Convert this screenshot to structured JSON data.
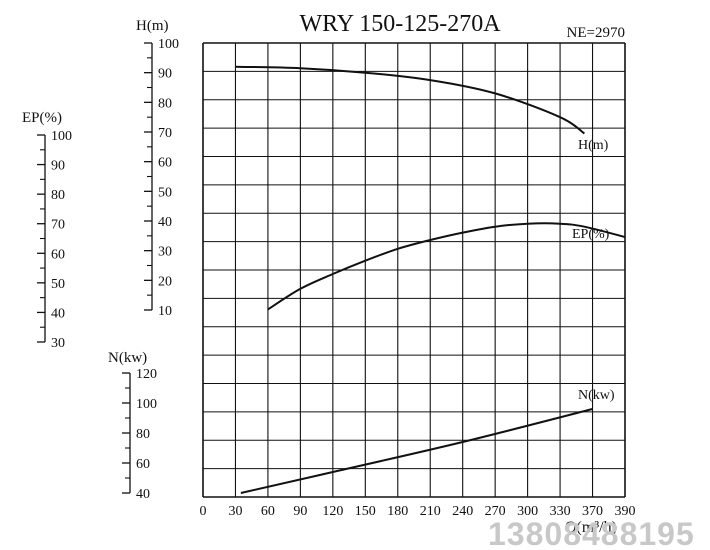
{
  "chart_data": {
    "type": "line",
    "title": "WRY 150-125-270A",
    "subtitle": "NE=2970",
    "xlabel": "Q(m³/h)",
    "x_ticks": [
      "0",
      "30",
      "60",
      "90",
      "120",
      "150",
      "180",
      "210",
      "240",
      "270",
      "300",
      "330",
      "370",
      "390"
    ],
    "xlim": [
      0,
      390
    ],
    "grid": true,
    "axes": [
      {
        "id": "H",
        "label": "H(m)",
        "range": [
          10,
          100
        ],
        "ticks": [
          "100",
          "90",
          "80",
          "70",
          "60",
          "50",
          "40",
          "30",
          "20",
          "10"
        ]
      },
      {
        "id": "EP",
        "label": "EP(%)",
        "range": [
          30,
          100
        ],
        "ticks": [
          "100",
          "90",
          "80",
          "70",
          "60",
          "50",
          "40",
          "30"
        ]
      },
      {
        "id": "N",
        "label": "N(kw)",
        "range": [
          40,
          120
        ],
        "ticks": [
          "120",
          "100",
          "80",
          "60",
          "40"
        ]
      }
    ],
    "series": [
      {
        "name": "H(m)",
        "axis": "H",
        "x": [
          30,
          90,
          150,
          210,
          270,
          330,
          360
        ],
        "y": [
          92,
          91.5,
          90,
          87.5,
          83,
          75,
          69.5
        ]
      },
      {
        "name": "EP(%)",
        "axis": "EP",
        "x": [
          60,
          90,
          120,
          150,
          180,
          210,
          240,
          270,
          300,
          330,
          360,
          390
        ],
        "y": [
          41,
          48,
          53,
          57.5,
          61.5,
          64.5,
          67,
          69,
          70,
          70,
          69,
          65.5
        ]
      },
      {
        "name": "N(kw)",
        "axis": "N",
        "x": [
          35,
          120,
          240,
          370
        ],
        "y": [
          40,
          54,
          74,
          96
        ]
      }
    ]
  },
  "watermark": "13808488195",
  "colors": {
    "line": "#111111",
    "watermark": "#c8c8c8"
  }
}
